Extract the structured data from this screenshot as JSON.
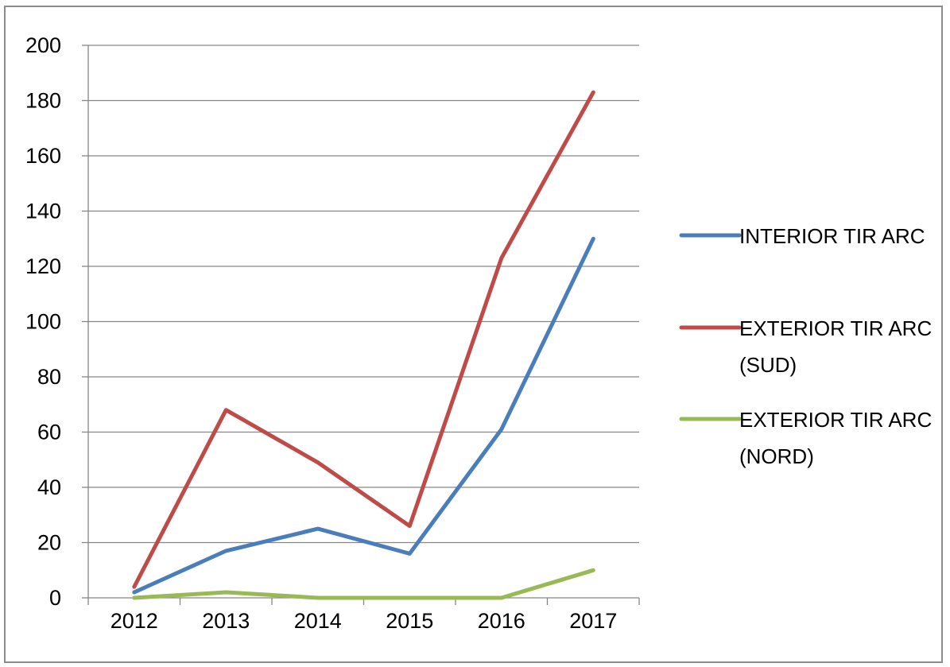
{
  "chart_data": {
    "type": "line",
    "title": "",
    "xlabel": "",
    "ylabel": "",
    "categories": [
      "2012",
      "2013",
      "2014",
      "2015",
      "2016",
      "2017"
    ],
    "ylim": [
      0,
      200
    ],
    "yticks": [
      0,
      20,
      40,
      60,
      80,
      100,
      120,
      140,
      160,
      180,
      200
    ],
    "grid": true,
    "legend_position": "right",
    "series": [
      {
        "name": "INTERIOR TIR ARC",
        "legend_lines": [
          "INTERIOR TIR ARC"
        ],
        "color": "#4a7ebb",
        "values": [
          2,
          17,
          25,
          16,
          61,
          130
        ]
      },
      {
        "name": "EXTERIOR TIR ARC (SUD)",
        "legend_lines": [
          "EXTERIOR TIR ARC",
          "(SUD)"
        ],
        "color": "#be4b48",
        "values": [
          4,
          68,
          49,
          26,
          123,
          183
        ]
      },
      {
        "name": "EXTERIOR TIR ARC (NORD)",
        "legend_lines": [
          "EXTERIOR TIR ARC",
          "(NORD)"
        ],
        "color": "#98b954",
        "values": [
          0,
          2,
          0,
          0,
          0,
          10
        ]
      }
    ]
  }
}
